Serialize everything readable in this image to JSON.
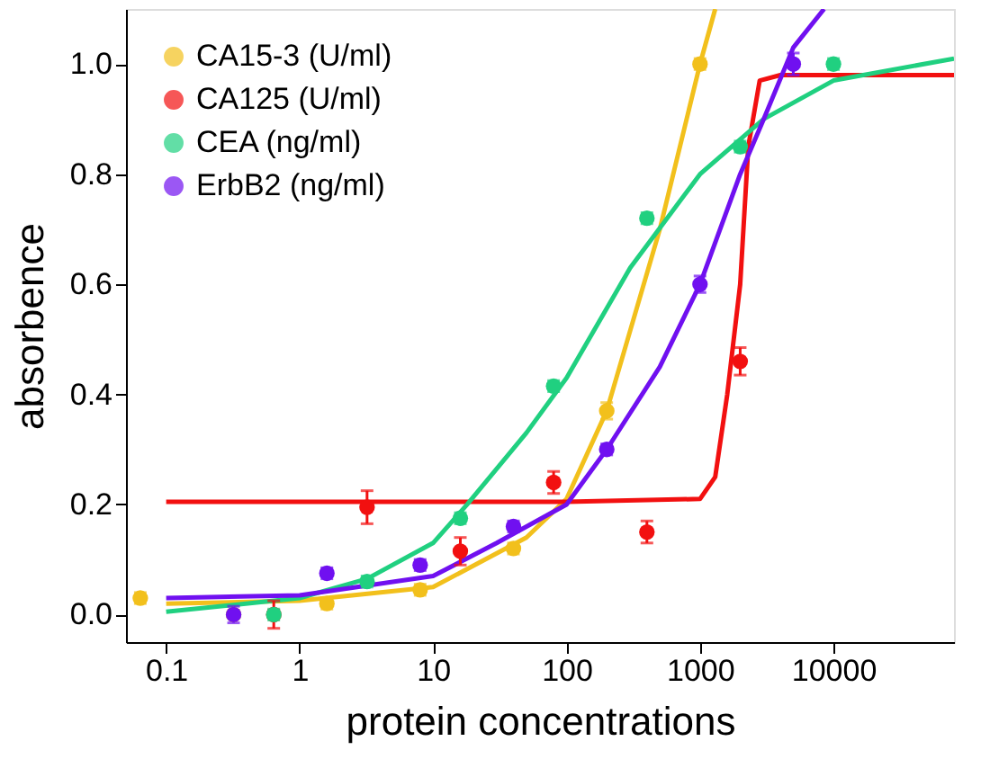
{
  "chart_data": {
    "type": "scatter",
    "xlabel": "protein concentrations",
    "ylabel": "absorbence",
    "log": "x",
    "xlim": [
      0.05,
      80000
    ],
    "ylim": [
      -0.05,
      1.1
    ],
    "xticks": [
      0.1,
      1,
      10,
      100,
      1000,
      10000
    ],
    "yticks": [
      {
        "value": 0,
        "label": "0.0"
      },
      {
        "value": 0.2,
        "label": "0.2"
      },
      {
        "value": 0.4,
        "label": "0.4"
      },
      {
        "value": 0.6,
        "label": "0.6"
      },
      {
        "value": 0.8,
        "label": "0.8"
      },
      {
        "value": 1.0,
        "label": "1.0"
      }
    ],
    "grid": false,
    "legend": "top left",
    "series": [
      {
        "name": "CA15-3 (U/ml)",
        "color": "#f2c01c",
        "x": [
          0.064,
          0.32,
          1.6,
          8,
          40,
          200,
          1000
        ],
        "values": [
          0.03,
          0.0,
          0.02,
          0.045,
          0.12,
          0.37,
          1.0
        ],
        "errors": [
          0.01,
          null,
          0.01,
          0.01,
          0.01,
          0.015,
          0.01
        ],
        "marker": "circle"
      },
      {
        "name": "CA125 (U/ml)",
        "color": "#f21010",
        "x": [
          0.64,
          3.2,
          16,
          80,
          400,
          2000
        ],
        "values": [
          0.0,
          0.195,
          0.115,
          0.24,
          0.15,
          0.46
        ],
        "errors": [
          0.025,
          0.03,
          0.025,
          0.02,
          0.02,
          0.025
        ],
        "marker": "circle"
      },
      {
        "name": "CEA (ng/ml)",
        "color": "#20d080",
        "x": [
          0.64,
          3.2,
          16,
          80,
          400,
          2000,
          10000
        ],
        "values": [
          0.0,
          0.06,
          0.175,
          0.415,
          0.72,
          0.85,
          1.0
        ],
        "errors": [
          0.01,
          0.01,
          0.01,
          0.01,
          0.01,
          0.01,
          0.01
        ],
        "marker": "circle"
      },
      {
        "name": "ErbB2 (ng/ml)",
        "color": "#7010f0",
        "x": [
          0.32,
          1.6,
          8,
          40,
          200,
          1000,
          5000
        ],
        "values": [
          0.0,
          0.075,
          0.09,
          0.16,
          0.3,
          0.6,
          1.0
        ],
        "errors": [
          0.015,
          0.01,
          0.01,
          0.01,
          0.01,
          0.015,
          0.02
        ],
        "marker": "circle"
      },
      {
        "type": "line",
        "color": "#f2c01c",
        "x": [
          0.1,
          1,
          10,
          50,
          100,
          200,
          500,
          1000,
          1300
        ],
        "values": [
          0.02,
          0.025,
          0.05,
          0.14,
          0.21,
          0.37,
          0.7,
          1.0,
          1.1
        ],
        "marker": "none"
      },
      {
        "type": "line",
        "color": "#f21010",
        "x": [
          0.1,
          1,
          10,
          100,
          1000,
          1300,
          1600,
          2000,
          2300,
          2800,
          4000,
          80000
        ],
        "values": [
          0.205,
          0.205,
          0.205,
          0.205,
          0.21,
          0.25,
          0.4,
          0.6,
          0.85,
          0.97,
          0.98,
          0.98
        ],
        "marker": "none"
      },
      {
        "type": "line",
        "color": "#20d080",
        "x": [
          0.1,
          1,
          3.2,
          10,
          18,
          50,
          100,
          300,
          1000,
          3000,
          10000,
          80000
        ],
        "values": [
          0.005,
          0.03,
          0.065,
          0.13,
          0.2,
          0.33,
          0.43,
          0.63,
          0.8,
          0.9,
          0.97,
          1.01
        ],
        "marker": "none"
      },
      {
        "type": "line",
        "color": "#7010f0",
        "x": [
          0.1,
          1,
          10,
          30,
          100,
          200,
          500,
          1000,
          2000,
          3000,
          5000,
          8500
        ],
        "values": [
          0.03,
          0.035,
          0.07,
          0.13,
          0.2,
          0.3,
          0.45,
          0.6,
          0.8,
          0.9,
          1.03,
          1.1
        ],
        "marker": "none"
      }
    ]
  }
}
